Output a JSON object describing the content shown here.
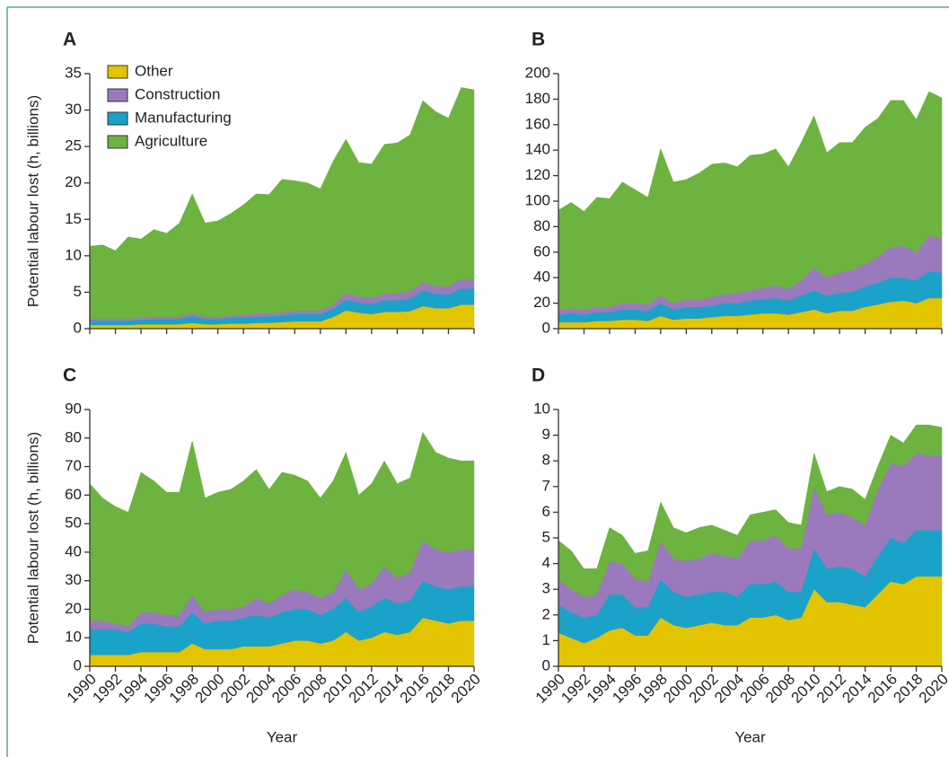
{
  "chart_data": [
    {
      "type": "stacked_area",
      "title": "A",
      "ylabel": "Potential labour lost (h, billions)",
      "legend": "upper left",
      "xtick_labels": false,
      "x": [
        1990,
        1991,
        1992,
        1993,
        1994,
        1995,
        1996,
        1997,
        1998,
        1999,
        2000,
        2001,
        2002,
        2003,
        2004,
        2005,
        2006,
        2007,
        2008,
        2009,
        2010,
        2011,
        2012,
        2013,
        2014,
        2015,
        2016,
        2017,
        2018,
        2019,
        2020
      ],
      "xlim": [
        1990,
        2020
      ],
      "xticks": [
        1990,
        1992,
        1994,
        1996,
        1998,
        2000,
        2002,
        2004,
        2006,
        2008,
        2010,
        2012,
        2014,
        2016,
        2018,
        2020
      ],
      "ylim": [
        0,
        35
      ],
      "yticks": [
        0,
        5,
        10,
        15,
        20,
        25,
        30,
        35
      ],
      "series": [
        {
          "name": "Other",
          "color": "#e3c400",
          "values": [
            0.5,
            0.5,
            0.5,
            0.5,
            0.6,
            0.6,
            0.6,
            0.6,
            0.8,
            0.6,
            0.6,
            0.7,
            0.7,
            0.8,
            0.8,
            0.9,
            1.0,
            1.0,
            1.0,
            1.6,
            2.5,
            2.2,
            2.0,
            2.3,
            2.3,
            2.4,
            3.1,
            2.8,
            2.8,
            3.3,
            3.3
          ]
        },
        {
          "name": "Construction",
          "color": "#9a79bd",
          "values": [
            0.3,
            0.3,
            0.3,
            0.3,
            0.3,
            0.3,
            0.3,
            0.3,
            0.4,
            0.3,
            0.3,
            0.3,
            0.4,
            0.4,
            0.4,
            0.4,
            0.5,
            0.5,
            0.5,
            0.6,
            0.9,
            0.8,
            0.8,
            0.9,
            1.0,
            1.0,
            1.2,
            1.1,
            1.1,
            1.3,
            1.3
          ]
        },
        {
          "name": "Manufacturing",
          "color": "#1ba2c9",
          "values": [
            0.6,
            0.6,
            0.6,
            0.6,
            0.6,
            0.7,
            0.7,
            0.7,
            0.9,
            0.7,
            0.7,
            0.8,
            0.8,
            0.8,
            0.9,
            0.9,
            1.0,
            1.0,
            1.0,
            1.1,
            1.5,
            1.4,
            1.4,
            1.6,
            1.6,
            1.7,
            2.1,
            2.0,
            1.9,
            2.2,
            2.2
          ]
        },
        {
          "name": "Agriculture",
          "color": "#6db33f",
          "values": [
            9.9,
            10.1,
            9.3,
            11.2,
            10.8,
            12.0,
            11.5,
            12.9,
            16.4,
            12.9,
            13.2,
            14.0,
            15.1,
            16.5,
            16.3,
            18.3,
            17.8,
            17.5,
            16.7,
            19.7,
            21.1,
            18.4,
            18.4,
            20.5,
            20.6,
            21.5,
            24.9,
            23.9,
            23.1,
            26.3,
            26.0
          ]
        }
      ]
    },
    {
      "type": "stacked_area",
      "title": "B",
      "xtick_labels": false,
      "x": [
        1990,
        1991,
        1992,
        1993,
        1994,
        1995,
        1996,
        1997,
        1998,
        1999,
        2000,
        2001,
        2002,
        2003,
        2004,
        2005,
        2006,
        2007,
        2008,
        2009,
        2010,
        2011,
        2012,
        2013,
        2014,
        2015,
        2016,
        2017,
        2018,
        2019,
        2020
      ],
      "xlim": [
        1990,
        2020
      ],
      "xticks": [
        1990,
        1992,
        1994,
        1996,
        1998,
        2000,
        2002,
        2004,
        2006,
        2008,
        2010,
        2012,
        2014,
        2016,
        2018,
        2020
      ],
      "ylim": [
        0,
        200
      ],
      "yticks": [
        0,
        20,
        40,
        60,
        80,
        100,
        120,
        140,
        160,
        180,
        200
      ],
      "series": [
        {
          "color": "#e3c400",
          "values": [
            5,
            5,
            5,
            6,
            6,
            7,
            7,
            6,
            10,
            7,
            8,
            8,
            9,
            10,
            10,
            11,
            12,
            12,
            11,
            13,
            15,
            12,
            14,
            14,
            17,
            19,
            21,
            22,
            20,
            24,
            24
          ]
        },
        {
          "color": "#9a79bd",
          "values": [
            4,
            4,
            4,
            4,
            4,
            5,
            5,
            5,
            6,
            5,
            6,
            6,
            7,
            7,
            8,
            8,
            9,
            10,
            9,
            12,
            18,
            14,
            16,
            17,
            18,
            20,
            24,
            25,
            22,
            28,
            27
          ]
        },
        {
          "color": "#1ba2c9",
          "values": [
            6,
            7,
            6,
            7,
            7,
            8,
            8,
            8,
            10,
            8,
            9,
            9,
            9,
            10,
            10,
            11,
            11,
            12,
            11,
            13,
            15,
            14,
            14,
            15,
            16,
            17,
            19,
            18,
            18,
            21,
            20
          ]
        },
        {
          "color": "#6db33f",
          "values": [
            78,
            83,
            77,
            86,
            85,
            95,
            89,
            84,
            115,
            95,
            94,
            99,
            104,
            103,
            99,
            106,
            105,
            107,
            96,
            108,
            119,
            98,
            102,
            100,
            107,
            109,
            115,
            114,
            104,
            113,
            110
          ]
        }
      ]
    },
    {
      "type": "stacked_area",
      "title": "C",
      "ylabel": "Potential labour lost (h, billions)",
      "xlabel": "Year",
      "xtick_labels": true,
      "x": [
        1990,
        1991,
        1992,
        1993,
        1994,
        1995,
        1996,
        1997,
        1998,
        1999,
        2000,
        2001,
        2002,
        2003,
        2004,
        2005,
        2006,
        2007,
        2008,
        2009,
        2010,
        2011,
        2012,
        2013,
        2014,
        2015,
        2016,
        2017,
        2018,
        2019,
        2020
      ],
      "xlim": [
        1990,
        2020
      ],
      "xticks": [
        1990,
        1992,
        1994,
        1996,
        1998,
        2000,
        2002,
        2004,
        2006,
        2008,
        2010,
        2012,
        2014,
        2016,
        2018,
        2020
      ],
      "ylim": [
        0,
        90
      ],
      "yticks": [
        0,
        10,
        20,
        30,
        40,
        50,
        60,
        70,
        80,
        90
      ],
      "series": [
        {
          "color": "#e3c400",
          "values": [
            4,
            4,
            4,
            4,
            5,
            5,
            5,
            5,
            8,
            6,
            6,
            6,
            7,
            7,
            7,
            8,
            9,
            9,
            8,
            9,
            12,
            9,
            10,
            12,
            11,
            12,
            17,
            16,
            15,
            16,
            16
          ]
        },
        {
          "color": "#9a79bd",
          "values": [
            3,
            3,
            2,
            2,
            4,
            4,
            4,
            4,
            6,
            4,
            4,
            4,
            4,
            6,
            5,
            6,
            7,
            6,
            6,
            6,
            10,
            8,
            8,
            11,
            9,
            10,
            14,
            13,
            13,
            13,
            13
          ]
        },
        {
          "color": "#1ba2c9",
          "values": [
            9,
            9,
            9,
            8,
            10,
            10,
            9,
            9,
            11,
            9,
            10,
            10,
            10,
            11,
            10,
            11,
            11,
            11,
            10,
            11,
            12,
            10,
            11,
            12,
            11,
            11,
            13,
            12,
            12,
            12,
            12
          ]
        },
        {
          "color": "#6db33f",
          "values": [
            48,
            43,
            41,
            40,
            49,
            46,
            43,
            43,
            54,
            40,
            41,
            42,
            44,
            45,
            40,
            43,
            40,
            39,
            35,
            39,
            41,
            33,
            35,
            37,
            33,
            33,
            38,
            34,
            33,
            31,
            31
          ]
        }
      ]
    },
    {
      "type": "stacked_area",
      "title": "D",
      "xlabel": "Year",
      "xtick_labels": true,
      "x": [
        1990,
        1991,
        1992,
        1993,
        1994,
        1995,
        1996,
        1997,
        1998,
        1999,
        2000,
        2001,
        2002,
        2003,
        2004,
        2005,
        2006,
        2007,
        2008,
        2009,
        2010,
        2011,
        2012,
        2013,
        2014,
        2015,
        2016,
        2017,
        2018,
        2019,
        2020
      ],
      "xlim": [
        1990,
        2020
      ],
      "xticks": [
        1990,
        1992,
        1994,
        1996,
        1998,
        2000,
        2002,
        2004,
        2006,
        2008,
        2010,
        2012,
        2014,
        2016,
        2018,
        2020
      ],
      "ylim": [
        0,
        10
      ],
      "yticks": [
        0,
        1,
        2,
        3,
        4,
        5,
        6,
        7,
        8,
        9,
        10
      ],
      "series": [
        {
          "color": "#e3c400",
          "values": [
            1.3,
            1.1,
            0.9,
            1.1,
            1.4,
            1.5,
            1.2,
            1.2,
            1.9,
            1.6,
            1.5,
            1.6,
            1.7,
            1.6,
            1.6,
            1.9,
            1.9,
            2.0,
            1.8,
            1.9,
            3.0,
            2.5,
            2.5,
            2.4,
            2.3,
            2.8,
            3.3,
            3.2,
            3.5,
            3.5,
            3.5
          ]
        },
        {
          "color": "#9a79bd",
          "values": [
            1.0,
            0.9,
            0.8,
            0.8,
            1.3,
            1.2,
            1.1,
            1.0,
            1.5,
            1.3,
            1.4,
            1.4,
            1.5,
            1.4,
            1.5,
            1.7,
            1.7,
            1.8,
            1.7,
            1.7,
            2.4,
            2.1,
            2.1,
            2.0,
            2.0,
            2.6,
            2.9,
            3.0,
            3.0,
            2.9,
            2.9
          ]
        },
        {
          "color": "#1ba2c9",
          "values": [
            1.1,
            1.0,
            1.0,
            0.9,
            1.4,
            1.3,
            1.1,
            1.1,
            1.5,
            1.3,
            1.2,
            1.2,
            1.2,
            1.3,
            1.1,
            1.3,
            1.3,
            1.3,
            1.1,
            1.0,
            1.6,
            1.3,
            1.4,
            1.4,
            1.2,
            1.5,
            1.7,
            1.6,
            1.8,
            1.8,
            1.8
          ]
        },
        {
          "color": "#6db33f",
          "values": [
            1.5,
            1.5,
            1.1,
            1.0,
            1.3,
            1.1,
            1.0,
            1.2,
            1.5,
            1.2,
            1.1,
            1.2,
            1.1,
            1.0,
            0.9,
            1.0,
            1.1,
            1.0,
            1.0,
            0.9,
            1.3,
            0.9,
            1.0,
            1.1,
            1.0,
            0.9,
            1.1,
            0.9,
            1.1,
            1.2,
            1.1
          ]
        }
      ]
    }
  ]
}
